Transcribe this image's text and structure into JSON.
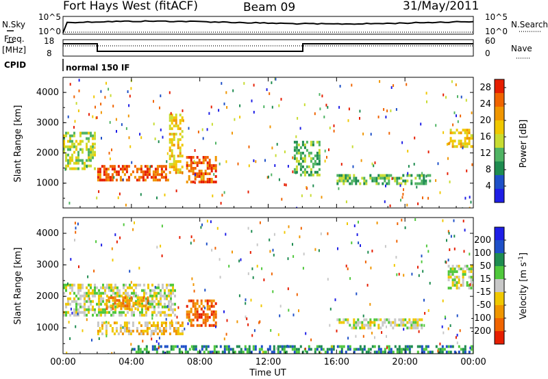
{
  "header": {
    "title": "Fort Hays West (fitACF)",
    "beam": "Beam 09",
    "date": "31/May/2011"
  },
  "panel_labels": {
    "nsky": "N.Sky",
    "nsearch": "N.Search",
    "freq_line1": "Freq.",
    "freq_line2": "[MHz]",
    "nave": "Nave",
    "cpid": "CPID",
    "cpid_value": "normal 150 IF"
  },
  "noise_axis": {
    "left_top": "10^5",
    "left_bottom": "10^0",
    "right_top": "10^5",
    "right_bottom": "10^0"
  },
  "freq_axis": {
    "left_top": "18",
    "left_bottom": "8",
    "right_top": "60",
    "right_bottom": "0"
  },
  "colors": {
    "power_scale": [
      "#1e1ee6",
      "#1e50c8",
      "#1e8c50",
      "#50b464",
      "#c8dc32",
      "#f0c800",
      "#f09600",
      "#f06400",
      "#e61e00"
    ],
    "velocity_scale": [
      "#1e1ee6",
      "#1e50c8",
      "#1e8c50",
      "#50c83c",
      "#c8c8c8",
      "#f0c800",
      "#f09600",
      "#f06400",
      "#e61e00"
    ]
  },
  "chart_data": [
    {
      "type": "heatmap",
      "title": "",
      "ylabel": "Slant Range [km]",
      "xlabel": "",
      "ylim": [
        180,
        4500
      ],
      "y_ticks": [
        "1000",
        "2000",
        "3000",
        "4000"
      ],
      "x_ticks": [
        "00:00",
        "04:00",
        "08:00",
        "12:00",
        "16:00",
        "20:00",
        "00:00"
      ],
      "colorbar_label": "Power [dB]",
      "colorbar_ticks": [
        "4",
        "8",
        "12",
        "16",
        "20",
        "24",
        "28"
      ],
      "colorbar_range": [
        0,
        30
      ],
      "echo_regions": [
        {
          "t_start": 0.0,
          "t_end": 1.9,
          "range_start": 1500,
          "range_end": 2700,
          "level_db": 14
        },
        {
          "t_start": 2.0,
          "t_end": 6.2,
          "range_start": 1100,
          "range_end": 1600,
          "level_db": 24
        },
        {
          "t_start": 6.2,
          "t_end": 7.0,
          "range_start": 1400,
          "range_end": 3300,
          "level_db": 18
        },
        {
          "t_start": 7.2,
          "t_end": 9.0,
          "range_start": 1000,
          "range_end": 1900,
          "level_db": 26
        },
        {
          "t_start": 13.5,
          "t_end": 15.0,
          "range_start": 1300,
          "range_end": 2400,
          "level_db": 10
        },
        {
          "t_start": 16.0,
          "t_end": 21.5,
          "range_start": 1000,
          "range_end": 1300,
          "level_db": 10
        },
        {
          "t_start": 22.5,
          "t_end": 24.0,
          "range_start": 2200,
          "range_end": 2800,
          "level_db": 18
        }
      ]
    },
    {
      "type": "heatmap",
      "title": "",
      "ylabel": "Slant Range [km]",
      "xlabel": "Time UT",
      "ylim": [
        180,
        4500
      ],
      "y_ticks": [
        "1000",
        "2000",
        "3000",
        "4000"
      ],
      "x_ticks": [
        "00:00",
        "04:00",
        "08:00",
        "12:00",
        "16:00",
        "20:00",
        "00:00"
      ],
      "colorbar_label": "Velocity [m s^-1]",
      "colorbar_ticks": [
        "200",
        "100",
        "50",
        "15",
        "-15",
        "-50",
        "-100",
        "-200"
      ],
      "echo_regions": [
        {
          "t_start": 0.0,
          "t_end": 6.5,
          "range_start": 1400,
          "range_end": 2400,
          "velocity": 0
        },
        {
          "t_start": 2.5,
          "t_end": 5.0,
          "range_start": 1600,
          "range_end": 2000,
          "velocity": -100
        },
        {
          "t_start": 2.0,
          "t_end": 7.0,
          "range_start": 800,
          "range_end": 1200,
          "velocity": -50
        },
        {
          "t_start": 7.2,
          "t_end": 9.0,
          "range_start": 1100,
          "range_end": 1900,
          "velocity": -200
        },
        {
          "t_start": 4.0,
          "t_end": 24.0,
          "range_start": 200,
          "range_end": 450,
          "velocity": 50
        },
        {
          "t_start": 16.0,
          "t_end": 21.0,
          "range_start": 1000,
          "range_end": 1300,
          "velocity": 0
        },
        {
          "t_start": 22.5,
          "t_end": 24.0,
          "range_start": 2300,
          "range_end": 3000,
          "velocity": 0
        }
      ]
    }
  ]
}
